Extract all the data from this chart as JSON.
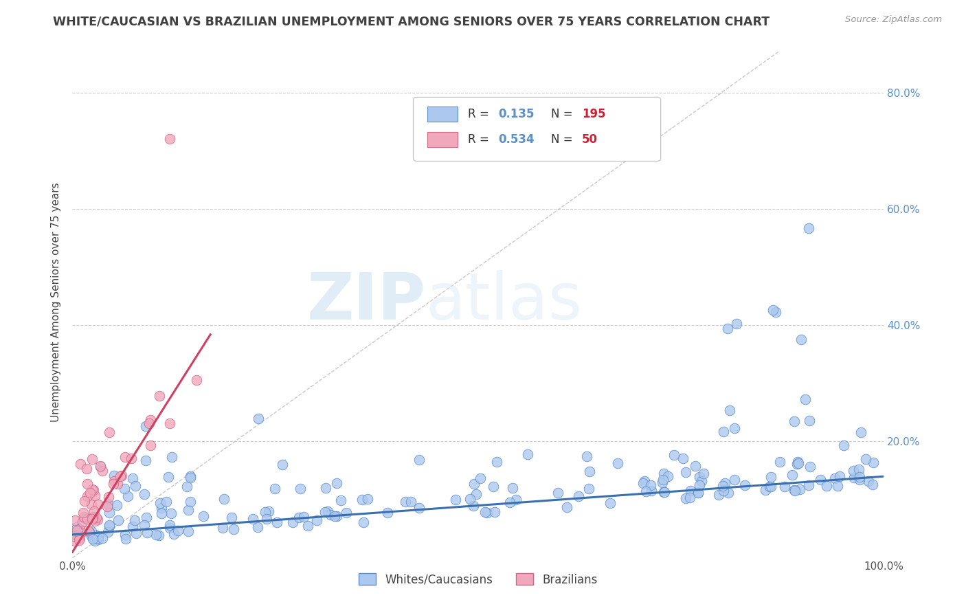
{
  "title": "WHITE/CAUCASIAN VS BRAZILIAN UNEMPLOYMENT AMONG SENIORS OVER 75 YEARS CORRELATION CHART",
  "source": "Source: ZipAtlas.com",
  "ylabel": "Unemployment Among Seniors over 75 years",
  "watermark_zip": "ZIP",
  "watermark_atlas": "atlas",
  "xlim": [
    0.0,
    1.0
  ],
  "ylim": [
    0.0,
    0.88
  ],
  "xticks": [
    0.0,
    0.2,
    0.4,
    0.6,
    0.8,
    1.0
  ],
  "xtick_labels": [
    "0.0%",
    "",
    "",
    "",
    "",
    "100.0%"
  ],
  "right_yticks": [
    0.2,
    0.4,
    0.6,
    0.8
  ],
  "right_ytick_labels": [
    "20.0%",
    "40.0%",
    "60.0%",
    "80.0%"
  ],
  "white_fill": "#adc8ee",
  "white_edge": "#5a8fcc",
  "brazilian_fill": "#f0a8bc",
  "brazilian_edge": "#d06888",
  "trend_white": "#3a6fb0",
  "trend_brazilian": "#d04060",
  "diag_color": "#bbbbbb",
  "R_white": 0.135,
  "N_white": 195,
  "R_brazilian": 0.534,
  "N_brazilian": 50,
  "legend_label_white": "Whites/Caucasians",
  "legend_label_brazilian": "Brazilians",
  "bg_color": "#ffffff",
  "grid_color": "#cccccc",
  "title_color": "#404040",
  "source_color": "#999999",
  "label_color": "#5a8fc8",
  "legend_text_color": "#333333",
  "seed_white": 42,
  "seed_brazilian": 7
}
